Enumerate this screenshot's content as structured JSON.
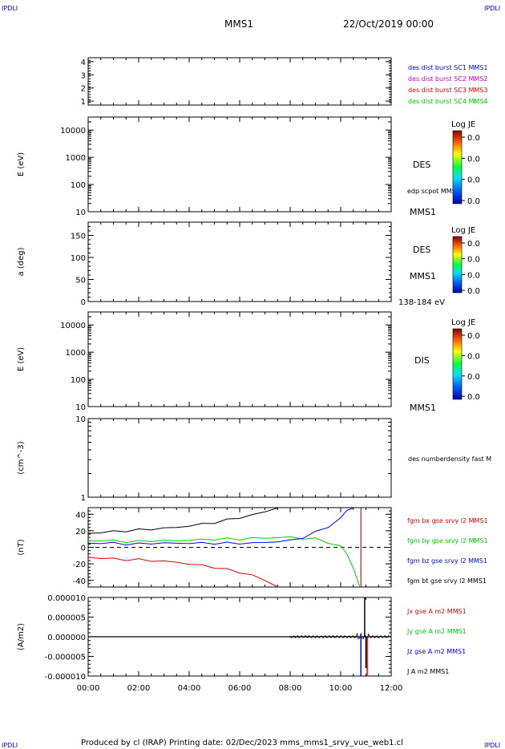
{
  "header": {
    "corner_tl": "IPDLI",
    "corner_tr": "IPDLI",
    "corner_bl": "IPDLI",
    "corner_br": "IPDLI",
    "spacecraft": "MMS1",
    "date": "22/Oct/2019 00:00"
  },
  "footer": {
    "text": "Produced by cl (IRAP)   Printing date: 02/Dec/2023   mms_mms1_srvy_vue_web1.cl"
  },
  "colors": {
    "blue": "#0000ff",
    "magenta": "#cc00cc",
    "red": "#dd0000",
    "green": "#00cc00",
    "black": "#000000"
  },
  "chart_data": [
    {
      "type": "line",
      "panel": "burst",
      "yticks": [
        "1",
        "2",
        "3",
        "4"
      ],
      "ylim": [
        0.7,
        4.3
      ],
      "legend": [
        {
          "label": "des dist burst SC1 MMS1",
          "color": "#0000ff"
        },
        {
          "label": "des dist burst SC2 MMS2",
          "color": "#cc00cc"
        },
        {
          "label": "des dist burst SC3 MMS3",
          "color": "#dd0000"
        },
        {
          "label": "des dist burst SC4 MMS4",
          "color": "#00cc00"
        }
      ]
    },
    {
      "type": "heatmap",
      "panel": "des-energy",
      "ylabel": "E (eV)",
      "yscale": "log",
      "ylim": [
        10,
        30000
      ],
      "yticks": [
        "10",
        "100",
        "1000",
        "10000"
      ],
      "side_labels": [
        "DES",
        "edp scpot MMS1",
        "MMS1"
      ],
      "colorbar": {
        "title": "Log JE",
        "ticks": [
          "0.0",
          "0.0",
          "0.0",
          "0.0"
        ]
      }
    },
    {
      "type": "heatmap",
      "panel": "des-pitch",
      "ylabel": "a (deg)",
      "ylim": [
        0,
        180
      ],
      "yticks": [
        "0",
        "50",
        "100",
        "150"
      ],
      "side_labels": [
        "DES",
        "MMS1",
        "138-184 eV"
      ],
      "colorbar": {
        "title": "Log JE",
        "ticks": [
          "0.0",
          "0.0",
          "0.0",
          "0.0"
        ]
      }
    },
    {
      "type": "heatmap",
      "panel": "dis-energy",
      "ylabel": "E (eV)",
      "yscale": "log",
      "ylim": [
        10,
        30000
      ],
      "yticks": [
        "10",
        "100",
        "1000",
        "10000"
      ],
      "side_labels": [
        "DIS",
        "MMS1"
      ],
      "colorbar": {
        "title": "Log JE",
        "ticks": [
          "0.0",
          "0.0",
          "0.0",
          "0.0"
        ]
      }
    },
    {
      "type": "line",
      "panel": "density",
      "ylabel": "(cm^-3)",
      "yscale": "log",
      "ylim": [
        1,
        10
      ],
      "yticks": [
        "1",
        "10"
      ],
      "legend": [
        {
          "label": "des numberdensity fast M",
          "color": "#000000"
        }
      ]
    },
    {
      "type": "line",
      "panel": "fgm",
      "ylabel": "(nT)",
      "ylim": [
        -48,
        48
      ],
      "yticks": [
        "-40",
        "-20",
        "0",
        "20",
        "40"
      ],
      "x": [
        0,
        0.5,
        1,
        1.5,
        2,
        2.5,
        3,
        3.5,
        4,
        4.5,
        5,
        5.5,
        6,
        6.5,
        7,
        7.5,
        8,
        8.5,
        9,
        9.5,
        10,
        10.25,
        10.5,
        10.75,
        11,
        11.5,
        12
      ],
      "series": [
        {
          "name": "fgm bx gse srvy l2 MMS1",
          "color": "#dd0000",
          "values": [
            -12,
            -13,
            -14,
            -15,
            -15,
            -16,
            -17,
            -18,
            -20,
            -22,
            -24,
            -27,
            -30,
            -34,
            -40,
            -48,
            null,
            null,
            null,
            null,
            null,
            null,
            null,
            null,
            null,
            null,
            null
          ]
        },
        {
          "name": "fgm by gse srvy l2 MMS1",
          "color": "#00cc00",
          "values": [
            8,
            8,
            8,
            7,
            7,
            8,
            8,
            8,
            9,
            9,
            10,
            10,
            10,
            11,
            11,
            12,
            12,
            11,
            10,
            6,
            1,
            -8,
            -25,
            -48,
            null,
            null,
            null
          ]
        },
        {
          "name": "fgm bz gse srvy l2 MMS1",
          "color": "#0000ff",
          "values": [
            5,
            5,
            5,
            4,
            4,
            5,
            5,
            5,
            5,
            5,
            5,
            5,
            5,
            5,
            6,
            7,
            8,
            12,
            18,
            25,
            35,
            45,
            48,
            null,
            null,
            null,
            null
          ]
        },
        {
          "name": "fgm bt gse srvy l2 MMS1",
          "color": "#000000",
          "values": [
            17,
            18,
            19,
            20,
            21,
            22,
            23,
            24,
            26,
            28,
            30,
            33,
            36,
            39,
            43,
            48,
            null,
            null,
            null,
            null,
            null,
            null,
            null,
            null,
            null,
            null,
            null
          ]
        }
      ]
    },
    {
      "type": "line",
      "panel": "current",
      "ylabel": "(A/m2)",
      "ylim": [
        -1e-05,
        1e-05
      ],
      "yticks": [
        "-0.000010",
        "-0.000005",
        "0.000000",
        "0.000005",
        "0.000010"
      ],
      "xticks": [
        "00:00",
        "02:00",
        "04:00",
        "06:00",
        "08:00",
        "10:00",
        "12:00"
      ],
      "xlim": [
        0,
        12
      ],
      "series": [
        {
          "name": "Jx gse A m2 MMS1",
          "color": "#dd0000"
        },
        {
          "name": "Jy gse A m2 MMS1",
          "color": "#00cc00"
        },
        {
          "name": "Jz gse A m2 MMS1",
          "color": "#0000ff"
        },
        {
          "name": "J A m2 MMS1",
          "color": "#000000"
        }
      ]
    }
  ]
}
